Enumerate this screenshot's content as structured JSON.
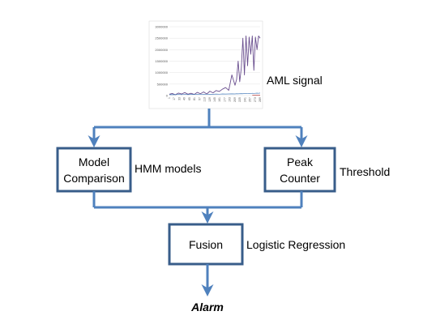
{
  "colors": {
    "connector": "#4F81BD",
    "box_border": "#385D8A",
    "signal_main": "#6A4F8F",
    "signal_secondary": "#4A7EBB",
    "signal_accent": "#C0504D"
  },
  "signal_label": "AML signal",
  "boxes": {
    "model_comparison": {
      "line1": "Model",
      "line2": "Comparison",
      "side_label": "HMM models"
    },
    "peak_counter": {
      "line1": "Peak",
      "line2": "Counter",
      "side_label": "Threshold"
    },
    "fusion": {
      "label": "Fusion",
      "side_label": "Logistic Regression"
    }
  },
  "output_label": "Alarm",
  "chart_data": {
    "type": "line",
    "title": "",
    "xlabel": "",
    "ylabel": "",
    "ylim": [
      0,
      3000000
    ],
    "yticks": [
      "3000000",
      "2500000",
      "2000000",
      "1500000",
      "1000000",
      "500000",
      "0"
    ],
    "xticks": [
      "1",
      "17",
      "33",
      "49",
      "65",
      "81",
      "97",
      "113",
      "129",
      "145",
      "161",
      "177",
      "193",
      "209",
      "225",
      "241",
      "257",
      "273",
      "289"
    ],
    "xlim": [
      1,
      290
    ],
    "grid": true,
    "legend": "none",
    "x": [
      1,
      10,
      20,
      30,
      40,
      50,
      60,
      70,
      80,
      90,
      100,
      110,
      120,
      130,
      140,
      150,
      160,
      170,
      180,
      190,
      200,
      210,
      215,
      220,
      225,
      230,
      235,
      240,
      245,
      250,
      255,
      260,
      265,
      270,
      275,
      280,
      285,
      290
    ],
    "series": [
      {
        "values": [
          60000,
          90000,
          40000,
          110000,
          70000,
          130000,
          60000,
          100000,
          50000,
          140000,
          80000,
          160000,
          70000,
          190000,
          120000,
          220000,
          180000,
          280000,
          350000,
          230000,
          900000,
          450000,
          700000,
          1500000,
          600000,
          1200000,
          2500000,
          900000,
          2600000,
          1300000,
          2550000,
          1800000,
          2600000,
          1100000,
          2550000,
          2000000,
          2600000,
          2500000
        ]
      },
      {
        "values": [
          40000,
          45000,
          40000,
          50000,
          42000,
          55000,
          45000,
          50000,
          48000,
          55000,
          50000,
          60000,
          55000,
          60000,
          58000,
          65000,
          60000,
          70000,
          65000,
          70000,
          75000,
          70000,
          80000,
          75000,
          80000,
          85000,
          80000,
          90000,
          85000,
          90000,
          95000,
          90000,
          100000,
          95000,
          100000,
          105000,
          100000,
          110000
        ]
      }
    ]
  }
}
